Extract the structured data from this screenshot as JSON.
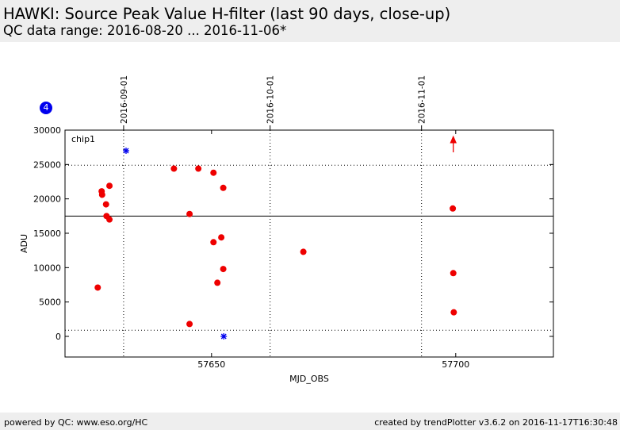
{
  "header": {
    "title": "HAWKI: Source Peak Value H-filter (last 90 days, close-up)",
    "subtitle": "QC data range: 2016-08-20 ... 2016-11-06*"
  },
  "footer": {
    "left": "powered by QC: www.eso.org/HC",
    "right": "created by trendPlotter v3.6.2 on 2016-11-17T16:30:48"
  },
  "badge": "4",
  "colors": {
    "data": "#ee0000",
    "outlier": "#0000ee",
    "reference": "#000000"
  },
  "chart_data": {
    "type": "scatter",
    "title": "",
    "xlabel": "MJD_OBS",
    "ylabel": "ADU",
    "panel_label": "chip1",
    "xlim": [
      57620,
      57720
    ],
    "ylim": [
      -3000,
      30000
    ],
    "x_ticks": [
      57650,
      57700
    ],
    "y_ticks": [
      0,
      5000,
      10000,
      15000,
      20000,
      25000,
      30000
    ],
    "date_markers": [
      {
        "x": 57632,
        "label": "2016-09-01"
      },
      {
        "x": 57662,
        "label": "2016-10-01"
      },
      {
        "x": 57693,
        "label": "2016-11-01"
      }
    ],
    "reference_line": 17500,
    "threshold_lines": [
      900,
      24900
    ],
    "series": [
      {
        "marker": "circle",
        "color": "#ee0000",
        "points": [
          [
            57626.7,
            7100
          ],
          [
            57627.5,
            21100
          ],
          [
            57627.6,
            20600
          ],
          [
            57628.4,
            19200
          ],
          [
            57628.5,
            17500
          ],
          [
            57629.1,
            17000
          ],
          [
            57629.1,
            21900
          ],
          [
            57642.3,
            24400
          ],
          [
            57645.5,
            1800
          ],
          [
            57645.5,
            17800
          ],
          [
            57647.3,
            24400
          ],
          [
            57650.4,
            23800
          ],
          [
            57650.4,
            13700
          ],
          [
            57651.2,
            7800
          ],
          [
            57652.0,
            14400
          ],
          [
            57652.4,
            21600
          ],
          [
            57652.4,
            9800
          ],
          [
            57668.8,
            12300
          ],
          [
            57699.4,
            18600
          ],
          [
            57699.5,
            9200
          ],
          [
            57699.6,
            3500
          ]
        ]
      },
      {
        "marker": "star",
        "color": "#0000ee",
        "points": [
          [
            57632.5,
            27000
          ],
          [
            57652.5,
            0
          ]
        ]
      }
    ],
    "off_scale_markers": [
      {
        "x": 57699.5,
        "direction": "up",
        "color": "#ee0000"
      }
    ]
  }
}
